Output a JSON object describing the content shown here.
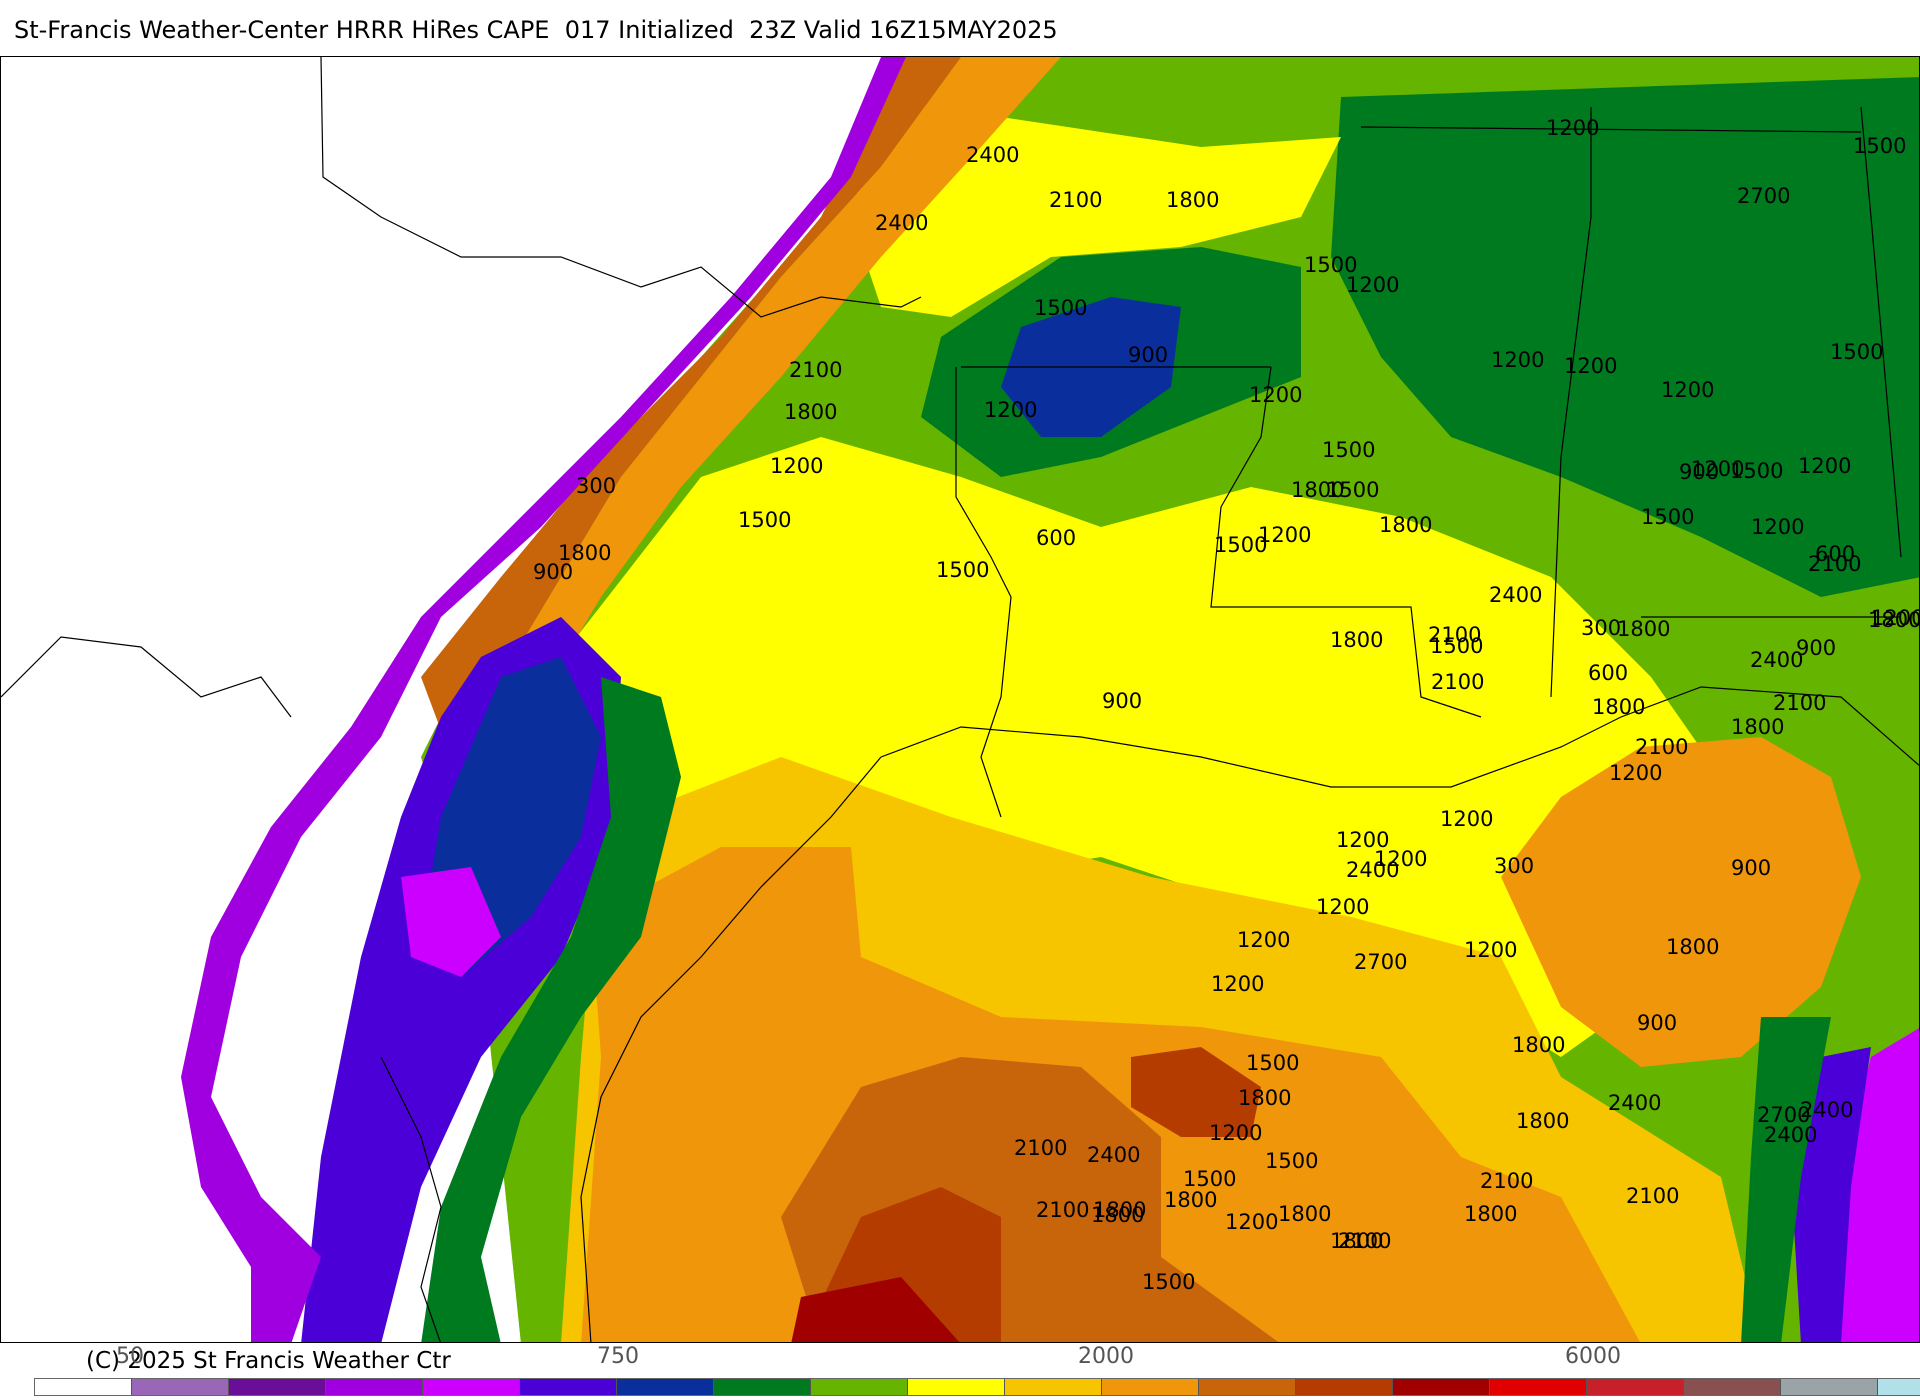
{
  "header": {
    "title": "St-Francis Weather-Center HRRR HiRes CAPE  017 Initialized  23Z Valid 16Z15MAY2025"
  },
  "footer": {
    "copyright": "(C) 2025 St Francis Weather Ctr"
  },
  "colorbar": {
    "colors": [
      "#ffffff",
      "#9966b8",
      "#6a0d99",
      "#a000e0",
      "#cc00ff",
      "#4b00d8",
      "#0a2f9c",
      "#007a1f",
      "#64b400",
      "#ffff00",
      "#f7c400",
      "#f0960a",
      "#c8640a",
      "#b43c00",
      "#a00000",
      "#e00000",
      "#c8202a",
      "#885050",
      "#9aa4a8",
      "#b0e0e8"
    ],
    "tick_labels": [
      {
        "text": "50"
      },
      {
        "text": "750"
      },
      {
        "text": "2000"
      },
      {
        "text": "6000"
      }
    ]
  },
  "contour_labels": [
    "2400",
    "2100",
    "1800",
    "1200",
    "1500",
    "2400",
    "2700",
    "2100",
    "900",
    "1500",
    "1200",
    "1800",
    "1500",
    "1200",
    "1200",
    "1200",
    "1200",
    "300",
    "1800",
    "900",
    "1500",
    "1200",
    "1500",
    "1500",
    "1200",
    "1500",
    "1200",
    "1500",
    "1800",
    "1500",
    "1800",
    "1200",
    "2400",
    "1800",
    "2100",
    "1500",
    "900",
    "600",
    "1200",
    "2100",
    "1800",
    "1500",
    "1800",
    "300",
    "2400",
    "2100",
    "600",
    "1200",
    "1500",
    "900",
    "2100",
    "1200",
    "1800",
    "1200",
    "900",
    "2100",
    "1800",
    "600",
    "300",
    "2400",
    "2700",
    "1200",
    "1800",
    "900",
    "900",
    "2400",
    "2700",
    "2400",
    "2400",
    "2100",
    "2100",
    "1800",
    "1800",
    "1800",
    "2100",
    "1800",
    "1800",
    "1500",
    "1200",
    "1800",
    "2400",
    "2100",
    "2100",
    "1800",
    "1800",
    "1500",
    "1800",
    "1500",
    "1200",
    "1500",
    "1200",
    "1200",
    "1200",
    "1200",
    "1200",
    "1200"
  ],
  "legend_colors": {
    "deep_green": "#007a1f",
    "green": "#64b400",
    "yellow": "#ffff00",
    "gold": "#f7c400",
    "orange": "#f0960a",
    "brown": "#c8640a",
    "red_brown": "#b43c00",
    "dark_red": "#a00000",
    "blue": "#4b00d8",
    "navy": "#0a2f9c",
    "magenta": "#cc00ff",
    "purple": "#a000e0",
    "lavender": "#9966b8"
  }
}
